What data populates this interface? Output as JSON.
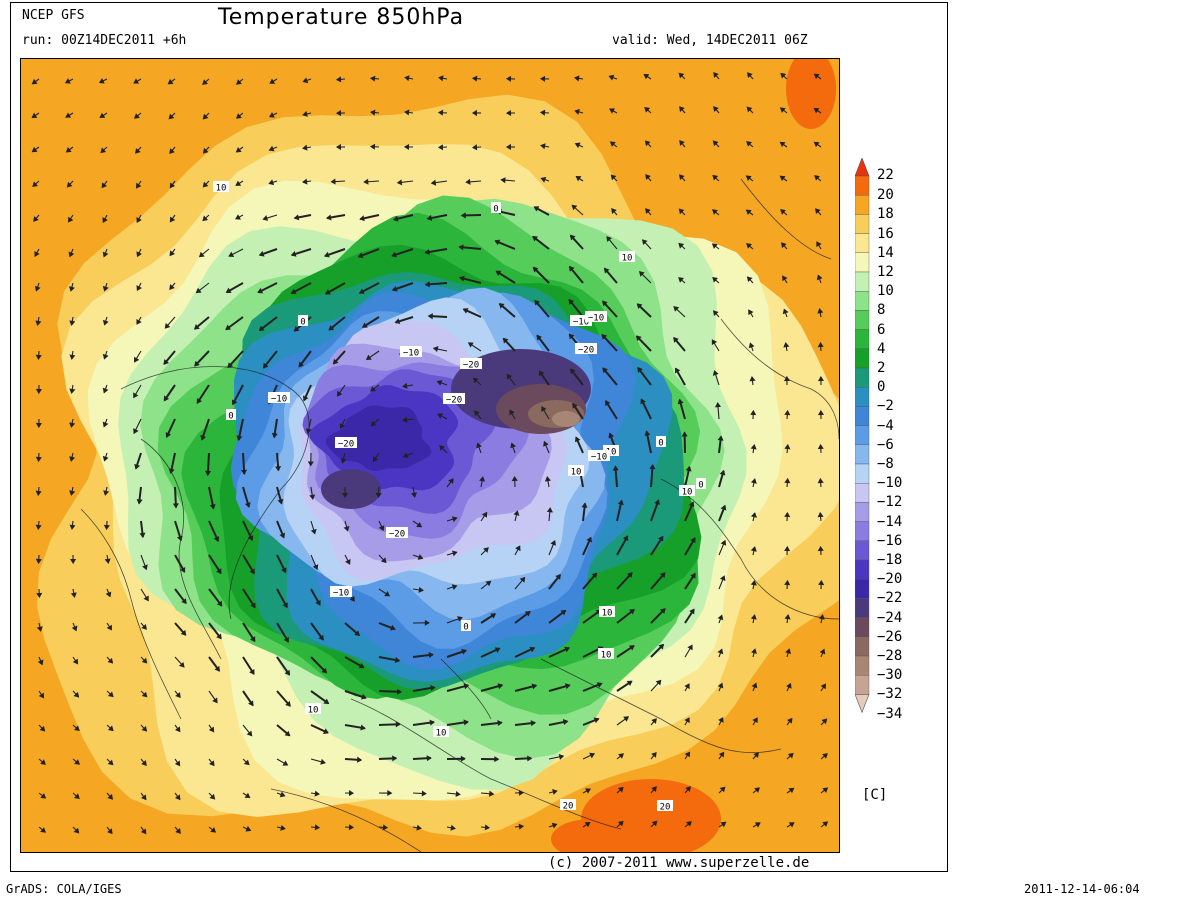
{
  "header": {
    "model": "NCEP GFS",
    "title": "Temperature 850hPa",
    "run": "run: 00Z14DEC2011 +6h",
    "valid": "valid: Wed, 14DEC2011 06Z"
  },
  "footer": {
    "copyright": "(c) 2007-2011 www.superzelle.de",
    "grads": "GrADS: COLA/IGES",
    "timestamp": "2011-12-14-06:04"
  },
  "legend": {
    "unit": "[C]",
    "levels": [
      {
        "value": 22,
        "label": "22",
        "color": "#e8330a"
      },
      {
        "value": 20,
        "label": "20",
        "color": "#f46b0d"
      },
      {
        "value": 18,
        "label": "18",
        "color": "#f5a623"
      },
      {
        "value": 16,
        "label": "16",
        "color": "#f8cd5a"
      },
      {
        "value": 14,
        "label": "14",
        "color": "#fbe692"
      },
      {
        "value": 12,
        "label": "12",
        "color": "#f4f7b8"
      },
      {
        "value": 10,
        "label": "10",
        "color": "#c4f0b4"
      },
      {
        "value": 8,
        "label": "8",
        "color": "#8ee28a"
      },
      {
        "value": 6,
        "label": "6",
        "color": "#56cc5a"
      },
      {
        "value": 4,
        "label": "4",
        "color": "#2bb53a"
      },
      {
        "value": 2,
        "label": "2",
        "color": "#16a02a"
      },
      {
        "value": 0,
        "label": "0",
        "color": "#1a9a78"
      },
      {
        "value": -2,
        "label": "−2",
        "color": "#2c8fc2"
      },
      {
        "value": -4,
        "label": "−4",
        "color": "#3f86d8"
      },
      {
        "value": -6,
        "label": "−6",
        "color": "#5c9be6"
      },
      {
        "value": -8,
        "label": "−8",
        "color": "#86b7ee"
      },
      {
        "value": -10,
        "label": "−10",
        "color": "#b6d2f4"
      },
      {
        "value": -12,
        "label": "−12",
        "color": "#c8c6f2"
      },
      {
        "value": -14,
        "label": "−14",
        "color": "#a69ce8"
      },
      {
        "value": -16,
        "label": "−16",
        "color": "#8a7ce0"
      },
      {
        "value": -18,
        "label": "−18",
        "color": "#6b58d4"
      },
      {
        "value": -20,
        "label": "−20",
        "color": "#4a36c2"
      },
      {
        "value": -22,
        "label": "−22",
        "color": "#3a28a8"
      },
      {
        "value": -24,
        "label": "−24",
        "color": "#4a3a7c"
      },
      {
        "value": -26,
        "label": "−26",
        "color": "#6a4a5c"
      },
      {
        "value": -28,
        "label": "−28",
        "color": "#8a6a5e"
      },
      {
        "value": -30,
        "label": "−30",
        "color": "#a88676"
      },
      {
        "value": -32,
        "label": "−32",
        "color": "#c6a494"
      },
      {
        "value": -34,
        "label": "−34",
        "color": "#e6cabc"
      }
    ]
  },
  "map": {
    "contour_labels": [
      {
        "text": "10"
      },
      {
        "text": "10"
      },
      {
        "text": "10"
      },
      {
        "text": "10"
      },
      {
        "text": "10"
      },
      {
        "text": "10"
      },
      {
        "text": "10"
      },
      {
        "text": "10"
      },
      {
        "text": "10"
      },
      {
        "text": "0"
      },
      {
        "text": "0"
      },
      {
        "text": "0"
      },
      {
        "text": "0"
      },
      {
        "text": "0"
      },
      {
        "text": "0"
      },
      {
        "text": "−10"
      },
      {
        "text": "−10"
      },
      {
        "text": "−10"
      },
      {
        "text": "−10"
      },
      {
        "text": "−10"
      },
      {
        "text": "−10"
      },
      {
        "text": "−20"
      },
      {
        "text": "−20"
      },
      {
        "text": "−20"
      },
      {
        "text": "−20"
      },
      {
        "text": "−20"
      },
      {
        "text": "20"
      },
      {
        "text": "20"
      }
    ]
  }
}
